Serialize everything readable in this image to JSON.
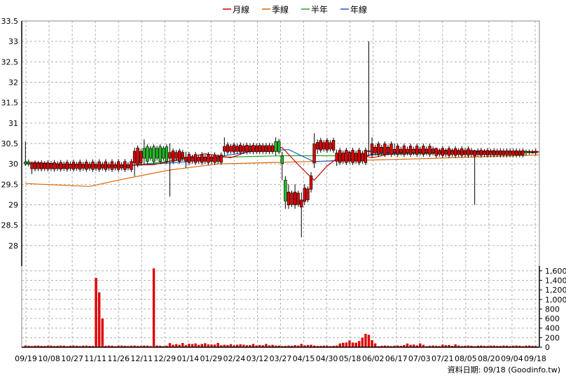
{
  "chart_data": {
    "type": "candlestick",
    "legend": [
      {
        "name": "月線",
        "color": "#cc0000"
      },
      {
        "name": "季線",
        "color": "#dd6600"
      },
      {
        "name": "半年",
        "color": "#22aa22"
      },
      {
        "name": "年線",
        "color": "#1e5cc8"
      }
    ],
    "price_axis": {
      "ylim": [
        27.5,
        33.5
      ],
      "ticks": [
        "28",
        "28.5",
        "29",
        "29.5",
        "30",
        "30.5",
        "31",
        "31.5",
        "32",
        "32.5",
        "33",
        "33.5"
      ]
    },
    "volume_axis": {
      "ylim": [
        0,
        1700
      ],
      "ticks": [
        "0",
        "200",
        "400",
        "600",
        "800",
        "1,000",
        "1,200",
        "1,400",
        "1,600"
      ]
    },
    "x_labels": [
      "09/19",
      "10/08",
      "10/27",
      "11/11",
      "11/26",
      "12/11",
      "12/29",
      "01/14",
      "01/29",
      "02/24",
      "03/12",
      "03/27",
      "04/15",
      "04/30",
      "05/18",
      "06/02",
      "06/17",
      "07/03",
      "07/21",
      "08/05",
      "08/20",
      "09/04",
      "09/18"
    ],
    "source_text": "資料日期: 09/18  (Goodinfo.tw)",
    "candle_segments": [
      {
        "from": 0,
        "to": 2,
        "open": 30.0,
        "close": 30.05,
        "high": 30.55,
        "low": 29.95,
        "up": true
      },
      {
        "from": 2,
        "to": 34,
        "open": 30.02,
        "close": 29.88,
        "high": 30.05,
        "low": 29.75,
        "up": false
      },
      {
        "from": 34,
        "to": 37,
        "open": 30.35,
        "close": 30.0,
        "high": 30.4,
        "low": 29.7,
        "up": false
      },
      {
        "from": 37,
        "to": 45,
        "open": 30.1,
        "close": 30.4,
        "high": 30.6,
        "low": 30.0,
        "up": true
      },
      {
        "from": 45,
        "to": 50,
        "open": 30.1,
        "close": 30.3,
        "high": 30.5,
        "low": 29.2,
        "up": false
      },
      {
        "from": 50,
        "to": 62,
        "open": 30.2,
        "close": 30.05,
        "high": 30.3,
        "low": 29.9,
        "up": false
      },
      {
        "from": 62,
        "to": 78,
        "open": 30.45,
        "close": 30.3,
        "high": 30.65,
        "low": 30.2,
        "up": false
      },
      {
        "from": 78,
        "to": 80,
        "open": 30.3,
        "close": 30.55,
        "high": 30.65,
        "low": 30.2,
        "up": true
      },
      {
        "from": 80,
        "to": 81,
        "open": 30.0,
        "close": 30.2,
        "high": 30.3,
        "low": 29.6,
        "up": true
      },
      {
        "from": 81,
        "to": 82,
        "open": 29.1,
        "close": 29.6,
        "high": 29.7,
        "low": 28.9,
        "up": true
      },
      {
        "from": 82,
        "to": 84,
        "open": 29.3,
        "close": 29.0,
        "high": 29.5,
        "low": 28.9,
        "up": false
      },
      {
        "from": 84,
        "to": 86,
        "open": 29.3,
        "close": 29.0,
        "high": 29.5,
        "low": 28.9,
        "up": false
      },
      {
        "from": 86,
        "to": 87,
        "open": 29.1,
        "close": 28.95,
        "high": 29.3,
        "low": 28.2,
        "up": false
      },
      {
        "from": 87,
        "to": 89,
        "open": 29.1,
        "close": 29.4,
        "high": 29.5,
        "low": 29.0,
        "up": false
      },
      {
        "from": 89,
        "to": 90,
        "open": 29.4,
        "close": 29.7,
        "high": 29.8,
        "low": 29.3,
        "up": false
      },
      {
        "from": 90,
        "to": 91,
        "open": 30.0,
        "close": 30.5,
        "high": 30.75,
        "low": 29.9,
        "up": false
      },
      {
        "from": 91,
        "to": 97,
        "open": 30.55,
        "close": 30.35,
        "high": 30.6,
        "low": 30.25,
        "up": false
      },
      {
        "from": 97,
        "to": 107,
        "open": 30.3,
        "close": 30.05,
        "high": 30.35,
        "low": 29.95,
        "up": false
      },
      {
        "from": 107,
        "to": 108,
        "open": 30.35,
        "close": 30.3,
        "high": 33.0,
        "low": 30.2,
        "up": false
      },
      {
        "from": 108,
        "to": 115,
        "open": 30.45,
        "close": 30.25,
        "high": 30.65,
        "low": 30.15,
        "up": false
      },
      {
        "from": 115,
        "to": 128,
        "open": 30.4,
        "close": 30.25,
        "high": 30.5,
        "low": 30.2,
        "up": false
      },
      {
        "from": 128,
        "to": 140,
        "open": 30.35,
        "close": 30.22,
        "high": 30.4,
        "low": 30.15,
        "up": false
      },
      {
        "from": 140,
        "to": 141,
        "open": 30.3,
        "close": 30.2,
        "high": 30.35,
        "low": 29.0,
        "up": false
      },
      {
        "from": 141,
        "to": 156,
        "open": 30.32,
        "close": 30.22,
        "high": 30.38,
        "low": 30.18,
        "up": false
      },
      {
        "from": 156,
        "to": 158,
        "open": 30.28,
        "close": 30.3,
        "high": 30.35,
        "low": 30.2,
        "up": true
      },
      {
        "from": 158,
        "to": 160,
        "open": 30.3,
        "close": 30.28,
        "high": 30.35,
        "low": 30.25,
        "up": false
      }
    ],
    "volume_spikes": [
      {
        "i": 22,
        "v": 1450
      },
      {
        "i": 23,
        "v": 1150
      },
      {
        "i": 24,
        "v": 600
      },
      {
        "i": 40,
        "v": 1650
      },
      {
        "i": 106,
        "v": 280
      },
      {
        "i": 107,
        "v": 260
      },
      {
        "i": 105,
        "v": 200
      }
    ],
    "volume_base": 35,
    "volume_active_ranges": [
      {
        "from": 45,
        "to": 62,
        "v": 90
      },
      {
        "from": 62,
        "to": 78,
        "v": 70
      },
      {
        "from": 84,
        "to": 90,
        "v": 70
      },
      {
        "from": 98,
        "to": 110,
        "v": 150
      },
      {
        "from": 118,
        "to": 125,
        "v": 80
      },
      {
        "from": 130,
        "to": 136,
        "v": 60
      }
    ],
    "ma_month": [
      [
        0,
        30.05
      ],
      [
        20,
        29.95
      ],
      [
        40,
        29.98
      ],
      [
        50,
        30.15
      ],
      [
        56,
        30.25
      ],
      [
        64,
        30.15
      ],
      [
        72,
        30.38
      ],
      [
        80,
        30.4
      ],
      [
        86,
        29.9
      ],
      [
        90,
        29.6
      ],
      [
        94,
        29.95
      ],
      [
        100,
        30.3
      ],
      [
        108,
        30.15
      ],
      [
        120,
        30.35
      ],
      [
        140,
        30.32
      ],
      [
        160,
        30.3
      ]
    ],
    "ma_quarter": [
      [
        0,
        30.0
      ],
      [
        30,
        29.95
      ],
      [
        50,
        30.05
      ],
      [
        70,
        30.3
      ],
      [
        82,
        30.35
      ],
      [
        90,
        30.05
      ],
      [
        100,
        30.1
      ],
      [
        110,
        30.25
      ],
      [
        140,
        30.3
      ],
      [
        160,
        30.3
      ]
    ],
    "ma_half": [
      [
        0,
        30.0
      ],
      [
        34,
        29.97
      ],
      [
        55,
        30.15
      ],
      [
        80,
        30.2
      ],
      [
        100,
        30.2
      ],
      [
        120,
        30.25
      ],
      [
        160,
        30.28
      ]
    ],
    "ma_year": [
      [
        0,
        29.52
      ],
      [
        20,
        29.45
      ],
      [
        30,
        29.62
      ],
      [
        45,
        29.85
      ],
      [
        60,
        30.0
      ],
      [
        85,
        30.05
      ],
      [
        120,
        30.12
      ],
      [
        160,
        30.22
      ]
    ]
  }
}
